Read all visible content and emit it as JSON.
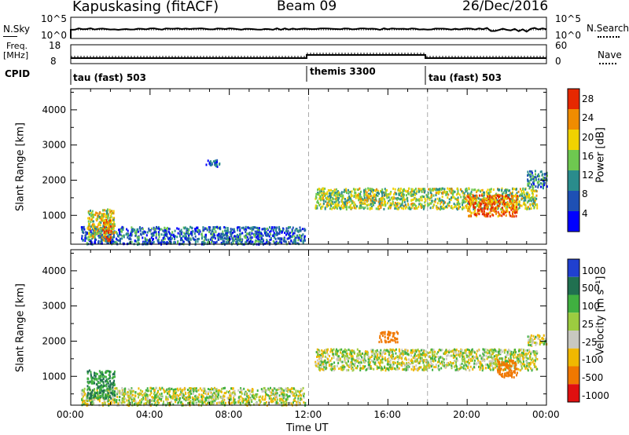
{
  "header": {
    "station": "Kapuskasing (fitACF)",
    "beam": "Beam 09",
    "date": "26/Dec/2016"
  },
  "panels": {
    "nsky": {
      "left_label": "N.Sky",
      "left_top": "10^5",
      "left_bottom": "10^0",
      "right_top": "10^5",
      "right_bottom": "10^0",
      "right_label": "N.Search"
    },
    "freq": {
      "label_top": "Freq.",
      "label_unit": "[MHz]",
      "left_top": "18",
      "left_bottom": "8",
      "right_top": "60",
      "right_bottom": "0",
      "right_label": "Nave"
    },
    "cpid": {
      "label": "CPID",
      "segments": [
        {
          "label": "tau (fast) 503",
          "start_hour": 0
        },
        {
          "label": "themis 3300",
          "start_hour": 12
        },
        {
          "label": "tau (fast) 503",
          "start_hour": 18
        }
      ]
    }
  },
  "axes": {
    "ylabel": "Slant Range [km]",
    "xlabel": "Time UT",
    "x_ticks": [
      "00:00",
      "04:00",
      "08:00",
      "12:00",
      "16:00",
      "20:00",
      "00:00"
    ],
    "y_ticks": [
      "1000",
      "2000",
      "3000",
      "4000"
    ]
  },
  "colorbars": {
    "power": {
      "label": "Power [dB]",
      "ticks": [
        "4",
        "8",
        "12",
        "16",
        "20",
        "24",
        "28"
      ],
      "colors": [
        "#0000ff",
        "#1e50b4",
        "#2a8c8c",
        "#6ec850",
        "#f0d200",
        "#f08c00",
        "#e62800"
      ]
    },
    "velocity": {
      "label": "Velocity [m s⁻¹]",
      "ticks": [
        "1000",
        "500",
        "100",
        "25",
        "-25",
        "-100",
        "-500",
        "-1000"
      ],
      "colors": [
        "#2040d0",
        "#207050",
        "#40b040",
        "#9ccc40",
        "#c8c8c0",
        "#f0b800",
        "#f07800",
        "#e01010"
      ]
    }
  },
  "chart_data": [
    {
      "type": "heatmap",
      "title": "Power",
      "xlabel": "Time UT",
      "ylabel": "Slant Range [km]",
      "xlim": [
        0,
        24
      ],
      "ylim": [
        180,
        4600
      ],
      "colorbar_label": "Power [dB]",
      "colorbar_range": [
        0,
        30
      ],
      "regions": [
        {
          "t0": 0.5,
          "t1": 11.8,
          "r0": 200,
          "r1": 700,
          "power": 8
        },
        {
          "t0": 0.8,
          "t1": 2.2,
          "r0": 400,
          "r1": 1200,
          "power": 18
        },
        {
          "t0": 1.6,
          "t1": 2.0,
          "r0": 300,
          "r1": 900,
          "power": 26
        },
        {
          "t0": 6.8,
          "t1": 7.5,
          "r0": 2400,
          "r1": 2600,
          "power": 6
        },
        {
          "t0": 12.3,
          "t1": 23.5,
          "r0": 1200,
          "r1": 1800,
          "power": 16
        },
        {
          "t0": 20.0,
          "t1": 22.5,
          "r0": 1000,
          "r1": 1600,
          "power": 26
        },
        {
          "t0": 23.0,
          "t1": 24.0,
          "r0": 1800,
          "r1": 2300,
          "power": 10
        }
      ]
    },
    {
      "type": "heatmap",
      "title": "Velocity",
      "xlabel": "Time UT",
      "ylabel": "Slant Range [km]",
      "xlim": [
        0,
        24
      ],
      "ylim": [
        180,
        4600
      ],
      "colorbar_label": "Velocity [m s⁻¹]",
      "colorbar_range": [
        -1000,
        1000
      ],
      "regions": [
        {
          "t0": 0.5,
          "t1": 11.8,
          "r0": 200,
          "r1": 700,
          "velocity": 0
        },
        {
          "t0": 0.8,
          "t1": 2.2,
          "r0": 400,
          "r1": 1200,
          "velocity": 100
        },
        {
          "t0": 12.3,
          "t1": 23.5,
          "r0": 1200,
          "r1": 1800,
          "velocity": 0
        },
        {
          "t0": 15.5,
          "t1": 16.5,
          "r0": 2000,
          "r1": 2300,
          "velocity": -300
        },
        {
          "t0": 21.5,
          "t1": 22.5,
          "r0": 1000,
          "r1": 1500,
          "velocity": -400
        },
        {
          "t0": 23.0,
          "t1": 24.0,
          "r0": 1900,
          "r1": 2200,
          "velocity": 0
        }
      ]
    }
  ]
}
